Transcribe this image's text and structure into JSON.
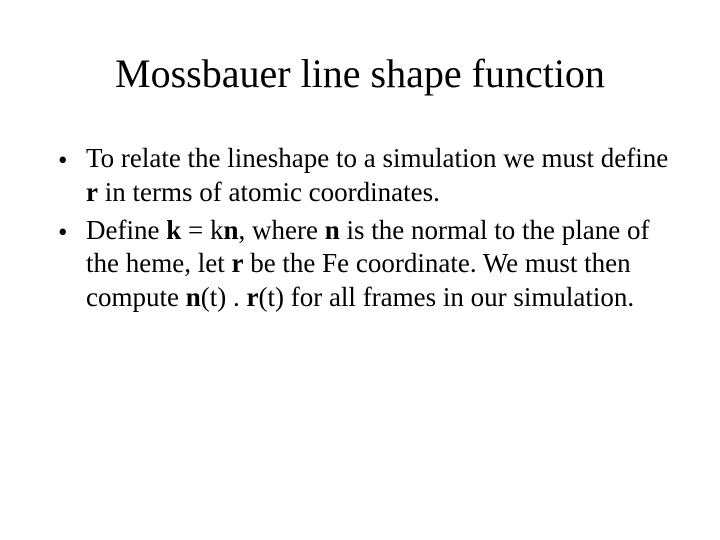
{
  "title": "Mossbauer line shape function",
  "bullets": [
    {
      "segments": [
        {
          "text": "To relate the lineshape to a simulation we must define ",
          "bold": false
        },
        {
          "text": "r",
          "bold": true
        },
        {
          "text": " in terms of atomic coordinates.",
          "bold": false
        }
      ]
    },
    {
      "segments": [
        {
          "text": "Define ",
          "bold": false
        },
        {
          "text": "k",
          "bold": true
        },
        {
          "text": " = k",
          "bold": false
        },
        {
          "text": "n",
          "bold": true
        },
        {
          "text": ", where ",
          "bold": false
        },
        {
          "text": "n",
          "bold": true
        },
        {
          "text": " is the normal to the plane of the heme, let ",
          "bold": false
        },
        {
          "text": "r",
          "bold": true
        },
        {
          "text": " be the Fe coordinate. We must then compute ",
          "bold": false
        },
        {
          "text": "n",
          "bold": true
        },
        {
          "text": "(t) . ",
          "bold": false
        },
        {
          "text": "r",
          "bold": true
        },
        {
          "text": "(t) for all frames in our simulation.",
          "bold": false
        }
      ]
    }
  ],
  "style": {
    "background_color": "#ffffff",
    "text_color": "#000000",
    "title_fontsize": 40,
    "body_fontsize": 27,
    "font_family": "Times New Roman"
  }
}
